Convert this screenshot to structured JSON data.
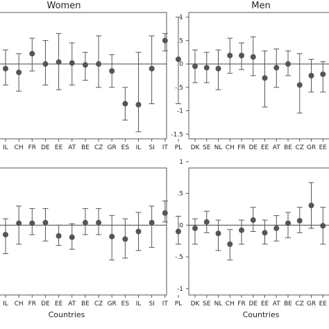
{
  "chart_data": [
    {
      "type": "scatter",
      "title": "Women",
      "xlabel": "",
      "ylabel": "",
      "ylim": [
        -1.6,
        1.1
      ],
      "categories": [
        "IL",
        "CH",
        "FR",
        "DE",
        "EE",
        "AT",
        "BE",
        "CZ",
        "GR",
        "ES",
        "IL",
        "SI",
        "IT",
        "PL"
      ],
      "values": [
        -0.1,
        -0.18,
        0.22,
        0.0,
        0.04,
        0.02,
        -0.02,
        0.0,
        -0.15,
        -0.85,
        -0.87,
        -0.1,
        0.5,
        0.1
      ],
      "ci_low": [
        -0.45,
        -0.58,
        -0.15,
        -0.45,
        -0.55,
        -0.45,
        -0.35,
        -0.5,
        -0.5,
        -1.2,
        -1.45,
        -0.85,
        0.28,
        -0.85
      ],
      "ci_high": [
        0.3,
        0.22,
        0.55,
        0.5,
        0.65,
        0.45,
        0.25,
        0.6,
        0.2,
        -0.5,
        0.25,
        0.6,
        0.65,
        1.0
      ],
      "yticks": [],
      "grid": false
    },
    {
      "type": "scatter",
      "title": "Men",
      "xlabel": "",
      "ylabel": "",
      "ylim": [
        -1.6,
        1.1
      ],
      "categories": [
        "DK",
        "SE",
        "NL",
        "CH",
        "FR",
        "DE",
        "EE",
        "AT",
        "BE",
        "CZ",
        "GR",
        "EE"
      ],
      "values": [
        -0.05,
        -0.08,
        -0.1,
        0.18,
        0.18,
        0.15,
        -0.3,
        -0.08,
        0.0,
        -0.45,
        -0.25,
        -0.22
      ],
      "ci_low": [
        -0.4,
        -0.4,
        -0.55,
        -0.2,
        -0.12,
        -0.25,
        -0.92,
        -0.5,
        -0.25,
        -1.05,
        -0.6,
        -0.6
      ],
      "ci_high": [
        0.3,
        0.25,
        0.3,
        0.55,
        0.45,
        0.58,
        0.28,
        0.32,
        0.28,
        0.22,
        0.1,
        0.05
      ],
      "yticks": [
        "1",
        ".5",
        "0",
        "-.5",
        "-1",
        "-1.5"
      ],
      "grid": false
    },
    {
      "type": "scatter",
      "title": "",
      "xlabel": "Countries",
      "ylabel": "",
      "ylim": [
        -1.1,
        0.9
      ],
      "categories": [
        "IL",
        "CH",
        "FR",
        "DE",
        "EE",
        "AT",
        "BE",
        "CZ",
        "GR",
        "ES",
        "IL",
        "SI",
        "IT",
        "PL"
      ],
      "values": [
        -0.15,
        0.03,
        0.03,
        0.04,
        -0.17,
        -0.19,
        0.04,
        0.04,
        -0.18,
        -0.22,
        -0.1,
        0.04,
        0.19,
        -0.1
      ],
      "ci_low": [
        -0.45,
        -0.3,
        -0.15,
        -0.25,
        -0.32,
        -0.38,
        -0.15,
        -0.15,
        -0.55,
        -0.52,
        -0.4,
        -0.35,
        0.05,
        -0.3
      ],
      "ci_high": [
        0.1,
        0.3,
        0.26,
        0.26,
        0.0,
        0.02,
        0.26,
        0.26,
        0.15,
        0.1,
        0.2,
        0.3,
        0.38,
        0.14
      ],
      "yticks": [],
      "grid": false
    },
    {
      "type": "scatter",
      "title": "",
      "xlabel": "Countries",
      "ylabel": "",
      "ylim": [
        -1.1,
        0.9
      ],
      "categories": [
        "DK",
        "SE",
        "NL",
        "CH",
        "FR",
        "DE",
        "EE",
        "AT",
        "BE",
        "CZ",
        "GR",
        "EE"
      ],
      "values": [
        -0.05,
        0.05,
        -0.13,
        -0.3,
        -0.08,
        0.08,
        -0.12,
        -0.05,
        0.03,
        0.07,
        0.31,
        -0.01
      ],
      "ci_low": [
        -0.3,
        -0.12,
        -0.4,
        -0.55,
        -0.3,
        -0.1,
        -0.3,
        -0.25,
        -0.2,
        -0.12,
        -0.05,
        -0.3
      ],
      "ci_high": [
        0.1,
        0.22,
        0.08,
        -0.07,
        0.08,
        0.28,
        0.08,
        0.15,
        0.2,
        0.28,
        0.67,
        0.28
      ],
      "yticks": [
        "1",
        ".5",
        "0",
        "-.5",
        "-1"
      ],
      "grid": false
    }
  ]
}
